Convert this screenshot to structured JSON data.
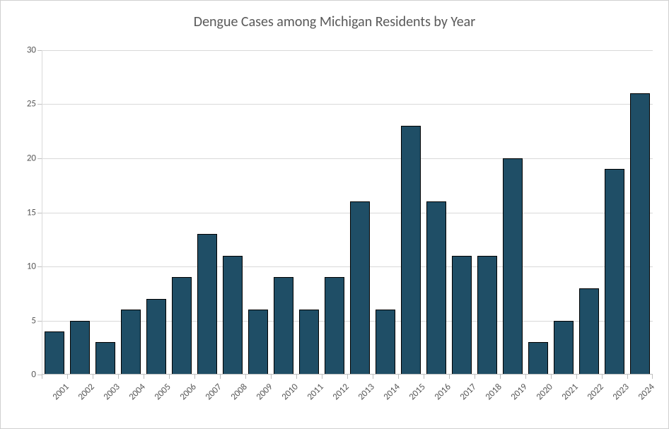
{
  "chart": {
    "type": "bar",
    "title": "Dengue Cases among Michigan Residents by Year",
    "title_fontsize": 20,
    "title_color": "#595959",
    "categories": [
      "2001",
      "2002",
      "2003",
      "2004",
      "2005",
      "2006",
      "2007",
      "2008",
      "2009",
      "2010",
      "2011",
      "2012",
      "2013",
      "2014",
      "2015",
      "2016",
      "2017",
      "2018",
      "2019",
      "2020",
      "2021",
      "2022",
      "2023",
      "2024"
    ],
    "values": [
      4,
      5,
      3,
      6,
      7,
      9,
      13,
      11,
      6,
      9,
      6,
      9,
      16,
      6,
      23,
      16,
      11,
      11,
      20,
      3,
      5,
      8,
      19,
      26
    ],
    "bar_color": "#1f4e66",
    "bar_border_color": "#000000",
    "bar_width": 0.78,
    "background_color": "#ffffff",
    "grid_color": "#d9d9d9",
    "axis_color": "#bfbfbf",
    "ylim": [
      0,
      30
    ],
    "ytick_step": 5,
    "yticks": [
      0,
      5,
      10,
      15,
      20,
      25,
      30
    ],
    "label_fontsize": 13,
    "xlabel_fontsize": 13,
    "xlabel_rotation": -45,
    "tick_color": "#595959",
    "border_color": "#d0d0d0"
  }
}
